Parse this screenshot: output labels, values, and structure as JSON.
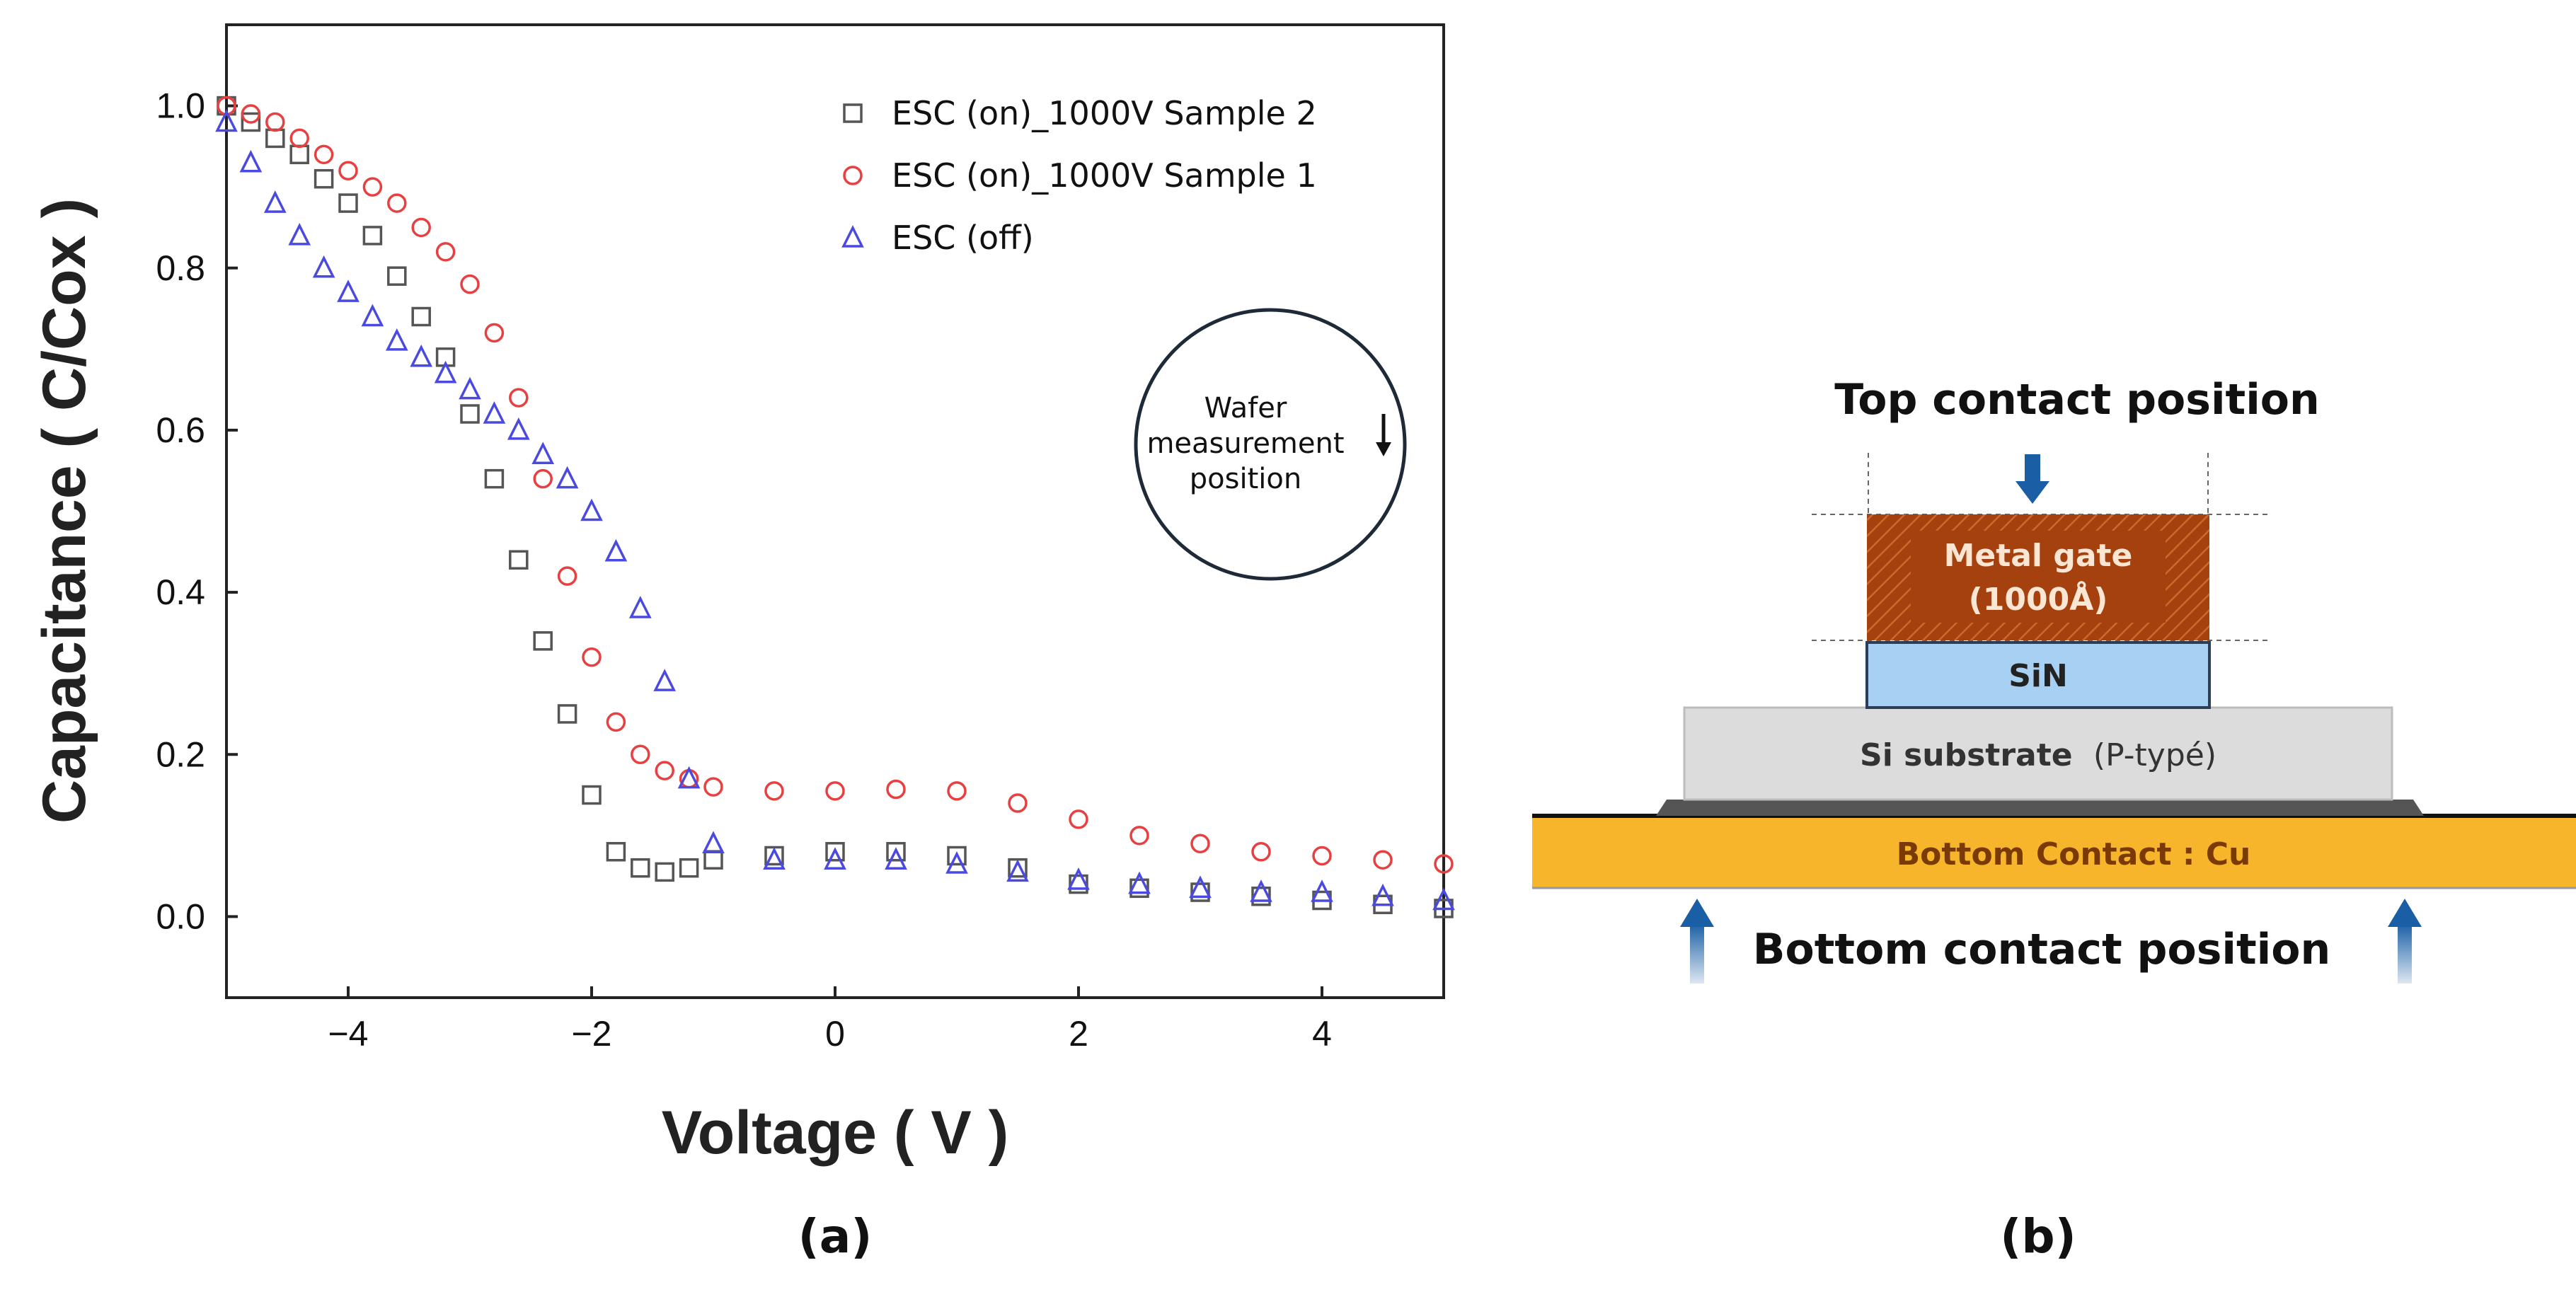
{
  "chart_data": {
    "type": "scatter",
    "xlabel": "Voltage ( V )",
    "ylabel": "Capacitance ( C/Cox )",
    "xlim": [
      -5,
      5
    ],
    "ylim": [
      -0.1,
      1.1
    ],
    "xticks": [
      -4,
      -2,
      0,
      2,
      4
    ],
    "yticks": [
      0.0,
      0.2,
      0.4,
      0.6,
      0.8,
      1.0
    ],
    "xtick_labels": [
      "−4",
      "−2",
      "0",
      "2",
      "4"
    ],
    "ytick_labels": [
      "0.0",
      "0.2",
      "0.4",
      "0.6",
      "0.8",
      "1.0"
    ],
    "legend_position": "top-right",
    "series": [
      {
        "name": "ESC (on)_1000V Sample 2",
        "marker": "square",
        "color": "#555555",
        "x": [
          -5.0,
          -4.8,
          -4.6,
          -4.4,
          -4.2,
          -4.0,
          -3.8,
          -3.6,
          -3.4,
          -3.2,
          -3.0,
          -2.8,
          -2.6,
          -2.4,
          -2.2,
          -2.0,
          -1.8,
          -1.6,
          -1.4,
          -1.2,
          -1.0,
          -0.5,
          0.0,
          0.5,
          1.0,
          1.5,
          2.0,
          2.5,
          3.0,
          3.5,
          4.0,
          4.5,
          5.0
        ],
        "y": [
          1.0,
          0.98,
          0.96,
          0.94,
          0.91,
          0.88,
          0.84,
          0.79,
          0.74,
          0.69,
          0.62,
          0.54,
          0.44,
          0.34,
          0.25,
          0.15,
          0.08,
          0.06,
          0.055,
          0.06,
          0.07,
          0.075,
          0.08,
          0.08,
          0.075,
          0.06,
          0.04,
          0.035,
          0.03,
          0.025,
          0.02,
          0.015,
          0.01
        ]
      },
      {
        "name": "ESC (on)_1000V Sample 1",
        "marker": "circle",
        "color": "#e84040",
        "x": [
          -5.0,
          -4.8,
          -4.6,
          -4.4,
          -4.2,
          -4.0,
          -3.8,
          -3.6,
          -3.4,
          -3.2,
          -3.0,
          -2.8,
          -2.6,
          -2.4,
          -2.2,
          -2.0,
          -1.8,
          -1.6,
          -1.4,
          -1.2,
          -1.0,
          -0.5,
          0.0,
          0.5,
          1.0,
          1.5,
          2.0,
          2.5,
          3.0,
          3.5,
          4.0,
          4.5,
          5.0
        ],
        "y": [
          1.0,
          0.99,
          0.98,
          0.96,
          0.94,
          0.92,
          0.9,
          0.88,
          0.85,
          0.82,
          0.78,
          0.72,
          0.64,
          0.54,
          0.42,
          0.32,
          0.24,
          0.2,
          0.18,
          0.17,
          0.16,
          0.155,
          0.155,
          0.157,
          0.155,
          0.14,
          0.12,
          0.1,
          0.09,
          0.08,
          0.075,
          0.07,
          0.065
        ]
      },
      {
        "name": "ESC (off)",
        "marker": "triangle",
        "color": "#4a4ae0",
        "x": [
          -5.0,
          -4.8,
          -4.6,
          -4.4,
          -4.2,
          -4.0,
          -3.8,
          -3.6,
          -3.4,
          -3.2,
          -3.0,
          -2.8,
          -2.6,
          -2.4,
          -2.2,
          -2.0,
          -1.8,
          -1.6,
          -1.4,
          -1.2,
          -1.0,
          -0.5,
          0.0,
          0.5,
          1.0,
          1.5,
          2.0,
          2.5,
          3.0,
          3.5,
          4.0,
          4.5,
          5.0
        ],
        "y": [
          0.98,
          0.93,
          0.88,
          0.84,
          0.8,
          0.77,
          0.74,
          0.71,
          0.69,
          0.67,
          0.65,
          0.62,
          0.6,
          0.57,
          0.54,
          0.5,
          0.45,
          0.38,
          0.29,
          0.17,
          0.09,
          0.07,
          0.07,
          0.07,
          0.065,
          0.055,
          0.045,
          0.04,
          0.035,
          0.03,
          0.03,
          0.025,
          0.02
        ]
      }
    ]
  },
  "panel_a": {
    "label": "(a)",
    "annotation": {
      "line1": "Wafer",
      "line2": "measurement",
      "line3": "position"
    }
  },
  "panel_b": {
    "label": "(b)",
    "top_contact": "Top contact position",
    "bottom_contact": "Bottom contact position",
    "metal_gate": "Metal gate",
    "metal_thickness": "(1000Å)",
    "sin": "SiN",
    "si_substrate": "Si substrate",
    "si_type": "(P-typé)",
    "bottom_layer": "Bottom Contact : Cu",
    "colors": {
      "metal": "#a5400f",
      "sin": "#a8d0f2",
      "substrate": "#dcdcdc",
      "copper": "#f7b52b",
      "arrow": "#1a5fa5"
    }
  }
}
